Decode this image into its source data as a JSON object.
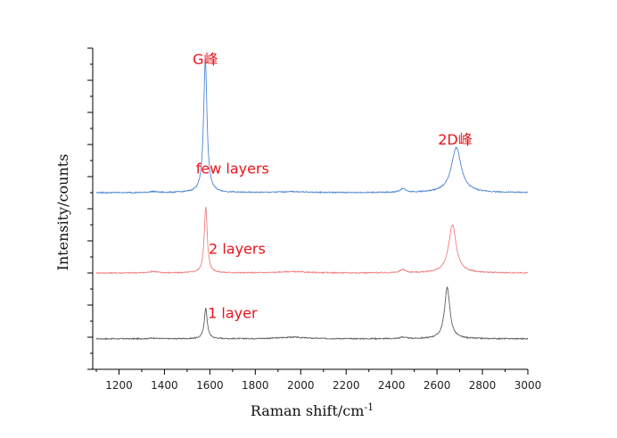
{
  "chart_data": {
    "type": "line",
    "title": "",
    "xlabel": "Raman shift/cm",
    "xlabel_superscript": "-1",
    "ylabel": "Intensity/counts",
    "xlim": [
      1100,
      3000
    ],
    "ylim": [
      0,
      10
    ],
    "x_ticks": [
      1200,
      1400,
      1600,
      1800,
      2000,
      2200,
      2400,
      2600,
      2800,
      3000
    ],
    "y_tick_labels_shown": false,
    "grid": false,
    "series": [
      {
        "name": "1 layer",
        "color": "#5f5f5f",
        "baseline": 0.95,
        "peaks": [
          {
            "center": 1582,
            "height": 0.95,
            "width": 8
          },
          {
            "center": 1350,
            "height": 0.02,
            "width": 20
          },
          {
            "center": 1960,
            "height": 0.05,
            "width": 70
          },
          {
            "center": 2450,
            "height": 0.05,
            "width": 14
          },
          {
            "center": 2645,
            "height": 1.6,
            "width": 14
          }
        ]
      },
      {
        "name": "2 layers",
        "color": "#f08080",
        "baseline": 3.0,
        "peaks": [
          {
            "center": 1582,
            "height": 2.05,
            "width": 8
          },
          {
            "center": 1350,
            "height": 0.05,
            "width": 20
          },
          {
            "center": 1960,
            "height": 0.04,
            "width": 70
          },
          {
            "center": 2450,
            "height": 0.1,
            "width": 14
          },
          {
            "center": 2668,
            "height": 1.5,
            "width": 20
          }
        ]
      },
      {
        "name": "few layers",
        "color": "#4d86d6",
        "baseline": 5.5,
        "peaks": [
          {
            "center": 1580,
            "height": 4.15,
            "width": 9
          },
          {
            "center": 1350,
            "height": 0.03,
            "width": 20
          },
          {
            "center": 1960,
            "height": 0.03,
            "width": 70
          },
          {
            "center": 2450,
            "height": 0.12,
            "width": 14
          },
          {
            "center": 2685,
            "height": 1.4,
            "width": 26
          }
        ]
      }
    ],
    "annotations": [
      {
        "text": "G峰",
        "x": 1580,
        "y": 9.5
      },
      {
        "text": "2D峰",
        "x": 2680,
        "y": 7.0
      },
      {
        "text": "few layers",
        "x": 1700,
        "y": 6.1
      },
      {
        "text": "2 layers",
        "x": 1720,
        "y": 3.6
      },
      {
        "text": "1 layer",
        "x": 1700,
        "y": 1.6
      }
    ]
  }
}
